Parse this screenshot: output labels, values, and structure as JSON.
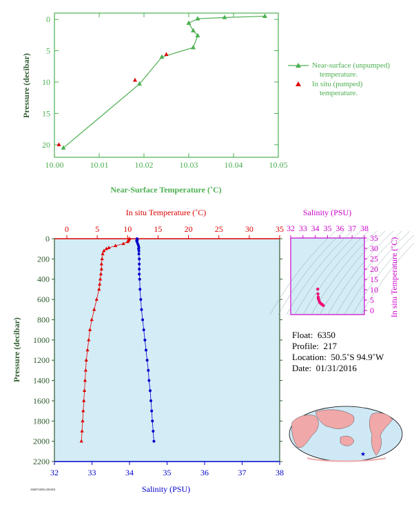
{
  "chart_data": [
    {
      "id": "near_surface",
      "type": "line",
      "xlabel": "Near-Surface Temperature (˚C)",
      "ylabel": "Pressure (decibar)",
      "xlim": [
        10.0,
        10.05
      ],
      "ylim": [
        22,
        -1
      ],
      "x_ticks": [
        "10.00",
        "10.01",
        "10.02",
        "10.03",
        "10.04",
        "10.05"
      ],
      "y_ticks": [
        "0",
        "5",
        "10",
        "15",
        "20"
      ],
      "colors": {
        "line": "#4caf50",
        "insitu": "#dd0000",
        "axis": "#4caf50",
        "labels": "#4caf50"
      },
      "legend_position": "right",
      "series": [
        {
          "name": "Near-surface (unpumped) temperature.",
          "marker": "triangle",
          "x": [
            10.047,
            10.038,
            10.032,
            10.03,
            10.031,
            10.032,
            10.031,
            10.024,
            10.019,
            10.002
          ],
          "y": [
            -0.5,
            -0.3,
            -0.1,
            0.6,
            1.8,
            2.6,
            4.5,
            6.0,
            10.3,
            20.5
          ]
        },
        {
          "name": "In situ (pumped) temperature.",
          "marker": "triangle",
          "x": [
            10.025,
            10.018,
            10.001
          ],
          "y": [
            5.6,
            9.7,
            20.0
          ]
        }
      ]
    },
    {
      "id": "profile",
      "type": "scatter",
      "title_top": "In situ Temperature (˚C)",
      "xlabel_bottom": "Salinity (PSU)",
      "ylabel": "Pressure (decibar)",
      "temp_lim": [
        -2,
        35
      ],
      "temp_ticks": [
        "0",
        "5",
        "10",
        "15",
        "20",
        "25",
        "30",
        "35"
      ],
      "sal_lim": [
        32,
        38
      ],
      "sal_ticks": [
        "32",
        "33",
        "34",
        "35",
        "36",
        "37",
        "38"
      ],
      "ylim": [
        2200,
        0
      ],
      "y_ticks": [
        "0",
        "200",
        "400",
        "600",
        "800",
        "1000",
        "1200",
        "1400",
        "1600",
        "1800",
        "2000",
        "2200"
      ],
      "colors": {
        "bg": "#d3ecf6",
        "temp": "#dd0000",
        "sal": "#0000cc",
        "ylabel": "#2e5a2e"
      },
      "temperature": {
        "name": "In situ Temperature",
        "p": [
          0,
          10,
          20,
          30,
          50,
          70,
          90,
          100,
          120,
          150,
          200,
          250,
          300,
          350,
          400,
          450,
          500,
          600,
          700,
          800,
          900,
          1000,
          1100,
          1200,
          1300,
          1400,
          1500,
          1600,
          1700,
          1800,
          1900,
          2000
        ],
        "t": [
          10.3,
          10.2,
          10.1,
          10.0,
          9.3,
          8.0,
          6.9,
          6.5,
          6.1,
          5.9,
          5.8,
          5.7,
          5.7,
          5.6,
          5.5,
          5.4,
          5.3,
          4.9,
          4.5,
          4.1,
          3.8,
          3.6,
          3.4,
          3.2,
          3.1,
          3.0,
          2.9,
          2.8,
          2.7,
          2.6,
          2.5,
          2.4
        ]
      },
      "salinity": {
        "name": "Salinity",
        "p": [
          0,
          10,
          20,
          30,
          50,
          70,
          90,
          100,
          120,
          150,
          200,
          250,
          300,
          350,
          400,
          500,
          600,
          700,
          800,
          900,
          1000,
          1100,
          1200,
          1300,
          1400,
          1500,
          1600,
          1700,
          1800,
          1900,
          2000
        ],
        "s": [
          34.2,
          34.21,
          34.19,
          34.2,
          34.22,
          34.24,
          34.25,
          34.24,
          34.25,
          34.25,
          34.26,
          34.26,
          34.26,
          34.26,
          34.27,
          34.28,
          34.3,
          34.32,
          34.35,
          34.38,
          34.41,
          34.44,
          34.47,
          34.5,
          34.52,
          34.55,
          34.57,
          34.59,
          34.61,
          34.63,
          34.65
        ]
      }
    },
    {
      "id": "ts_diagram",
      "type": "scatter",
      "title_top": "Salinity (PSU)",
      "ylabel": "In situ Temperature (˚C)",
      "sal_lim": [
        32,
        38
      ],
      "sal_ticks": [
        "32",
        "33",
        "34",
        "35",
        "36",
        "37",
        "38"
      ],
      "temp_lim": [
        -2,
        35
      ],
      "temp_ticks": [
        "0",
        "5",
        "10",
        "15",
        "20",
        "25",
        "30",
        "35"
      ],
      "colors": {
        "axis": "#cc00cc",
        "points": "#ee1177",
        "grid": "#8aa0a8",
        "bg": "#d3ecf6"
      },
      "points": {
        "s": [
          34.2,
          34.22,
          34.24,
          34.25,
          34.26,
          34.28,
          34.32,
          34.38,
          34.44,
          34.5,
          34.55,
          34.6,
          34.65
        ],
        "t": [
          10.3,
          8.0,
          6.5,
          5.8,
          5.6,
          5.3,
          4.5,
          3.8,
          3.4,
          3.1,
          2.9,
          2.7,
          2.4
        ]
      }
    }
  ],
  "float_info": {
    "float_label": "Float:",
    "float_value": "6350",
    "profile_label": "Profile:",
    "profile_value": "217",
    "location_label": "Location:",
    "location_value": "50.5˚S  94.9˚W",
    "date_label": "Date:",
    "date_value": "01/31/2016"
  },
  "map": {
    "marker_color": "#0000cc",
    "land_color": "#f0a8a8",
    "ocean_color": "#cfe8f5"
  },
  "stamp": "A0007A0054 2016031"
}
